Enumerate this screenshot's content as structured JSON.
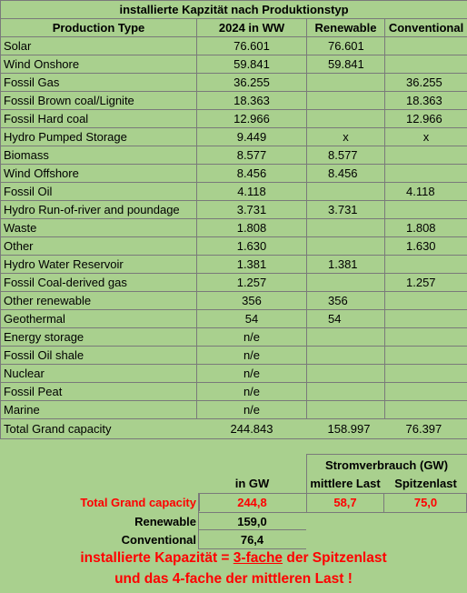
{
  "title": "installierte Kapzität nach Produktionstyp",
  "headers": [
    "Production Type",
    "2024 in WW",
    "Renewable",
    "Conventional"
  ],
  "rows": [
    [
      "Solar",
      "76.601",
      "76.601",
      ""
    ],
    [
      "Wind Onshore",
      "59.841",
      "59.841",
      ""
    ],
    [
      "Fossil Gas",
      "36.255",
      "",
      "36.255"
    ],
    [
      "Fossil Brown coal/Lignite",
      "18.363",
      "",
      "18.363"
    ],
    [
      "Fossil Hard coal",
      "12.966",
      "",
      "12.966"
    ],
    [
      "Hydro Pumped Storage",
      "9.449",
      "x",
      "x"
    ],
    [
      "Biomass",
      "8.577",
      "8.577",
      ""
    ],
    [
      "Wind Offshore",
      "8.456",
      "8.456",
      ""
    ],
    [
      "Fossil Oil",
      "4.118",
      "",
      "4.118"
    ],
    [
      "Hydro Run-of-river and poundage",
      "3.731",
      "3.731",
      ""
    ],
    [
      "Waste",
      "1.808",
      "",
      "1.808"
    ],
    [
      "Other",
      "1.630",
      "",
      "1.630"
    ],
    [
      "Hydro Water Reservoir",
      "1.381",
      "1.381",
      ""
    ],
    [
      "Fossil Coal-derived gas",
      "1.257",
      "",
      "1.257"
    ],
    [
      "Other renewable",
      "356",
      "356",
      ""
    ],
    [
      "Geothermal",
      "54",
      "54",
      ""
    ],
    [
      "Energy storage",
      "n/e",
      "",
      ""
    ],
    [
      "Fossil Oil shale",
      "n/e",
      "",
      ""
    ],
    [
      "Nuclear",
      "n/e",
      "",
      ""
    ],
    [
      "Fossil Peat",
      "n/e",
      "",
      ""
    ],
    [
      "Marine",
      "n/e",
      "",
      ""
    ]
  ],
  "total": [
    "Total Grand capacity",
    "244.843",
    "158.997",
    "76.397"
  ],
  "summary": {
    "consumption_header": "Stromverbrauch (GW)",
    "col_gw": "in GW",
    "col_mid": "mittlere Last",
    "col_peak": "Spitzenlast",
    "total_label": "Total Grand capacity",
    "total_gw": "244,8",
    "total_mid": "58,7",
    "total_peak": "75,0",
    "renewable_label": "Renewable",
    "renewable_gw": "159,0",
    "conventional_label": "Conventional",
    "conventional_gw": "76,4"
  },
  "note": {
    "line1_a": "installierte Kapazität = ",
    "line1_b": "3-fache",
    "line1_c": " der Spitzenlast",
    "line2": "und das 4-fache der mittleren Last !"
  },
  "colors": {
    "background": "#a9d08e",
    "highlight": "#ff0000",
    "grid": "#7a7a7a"
  }
}
